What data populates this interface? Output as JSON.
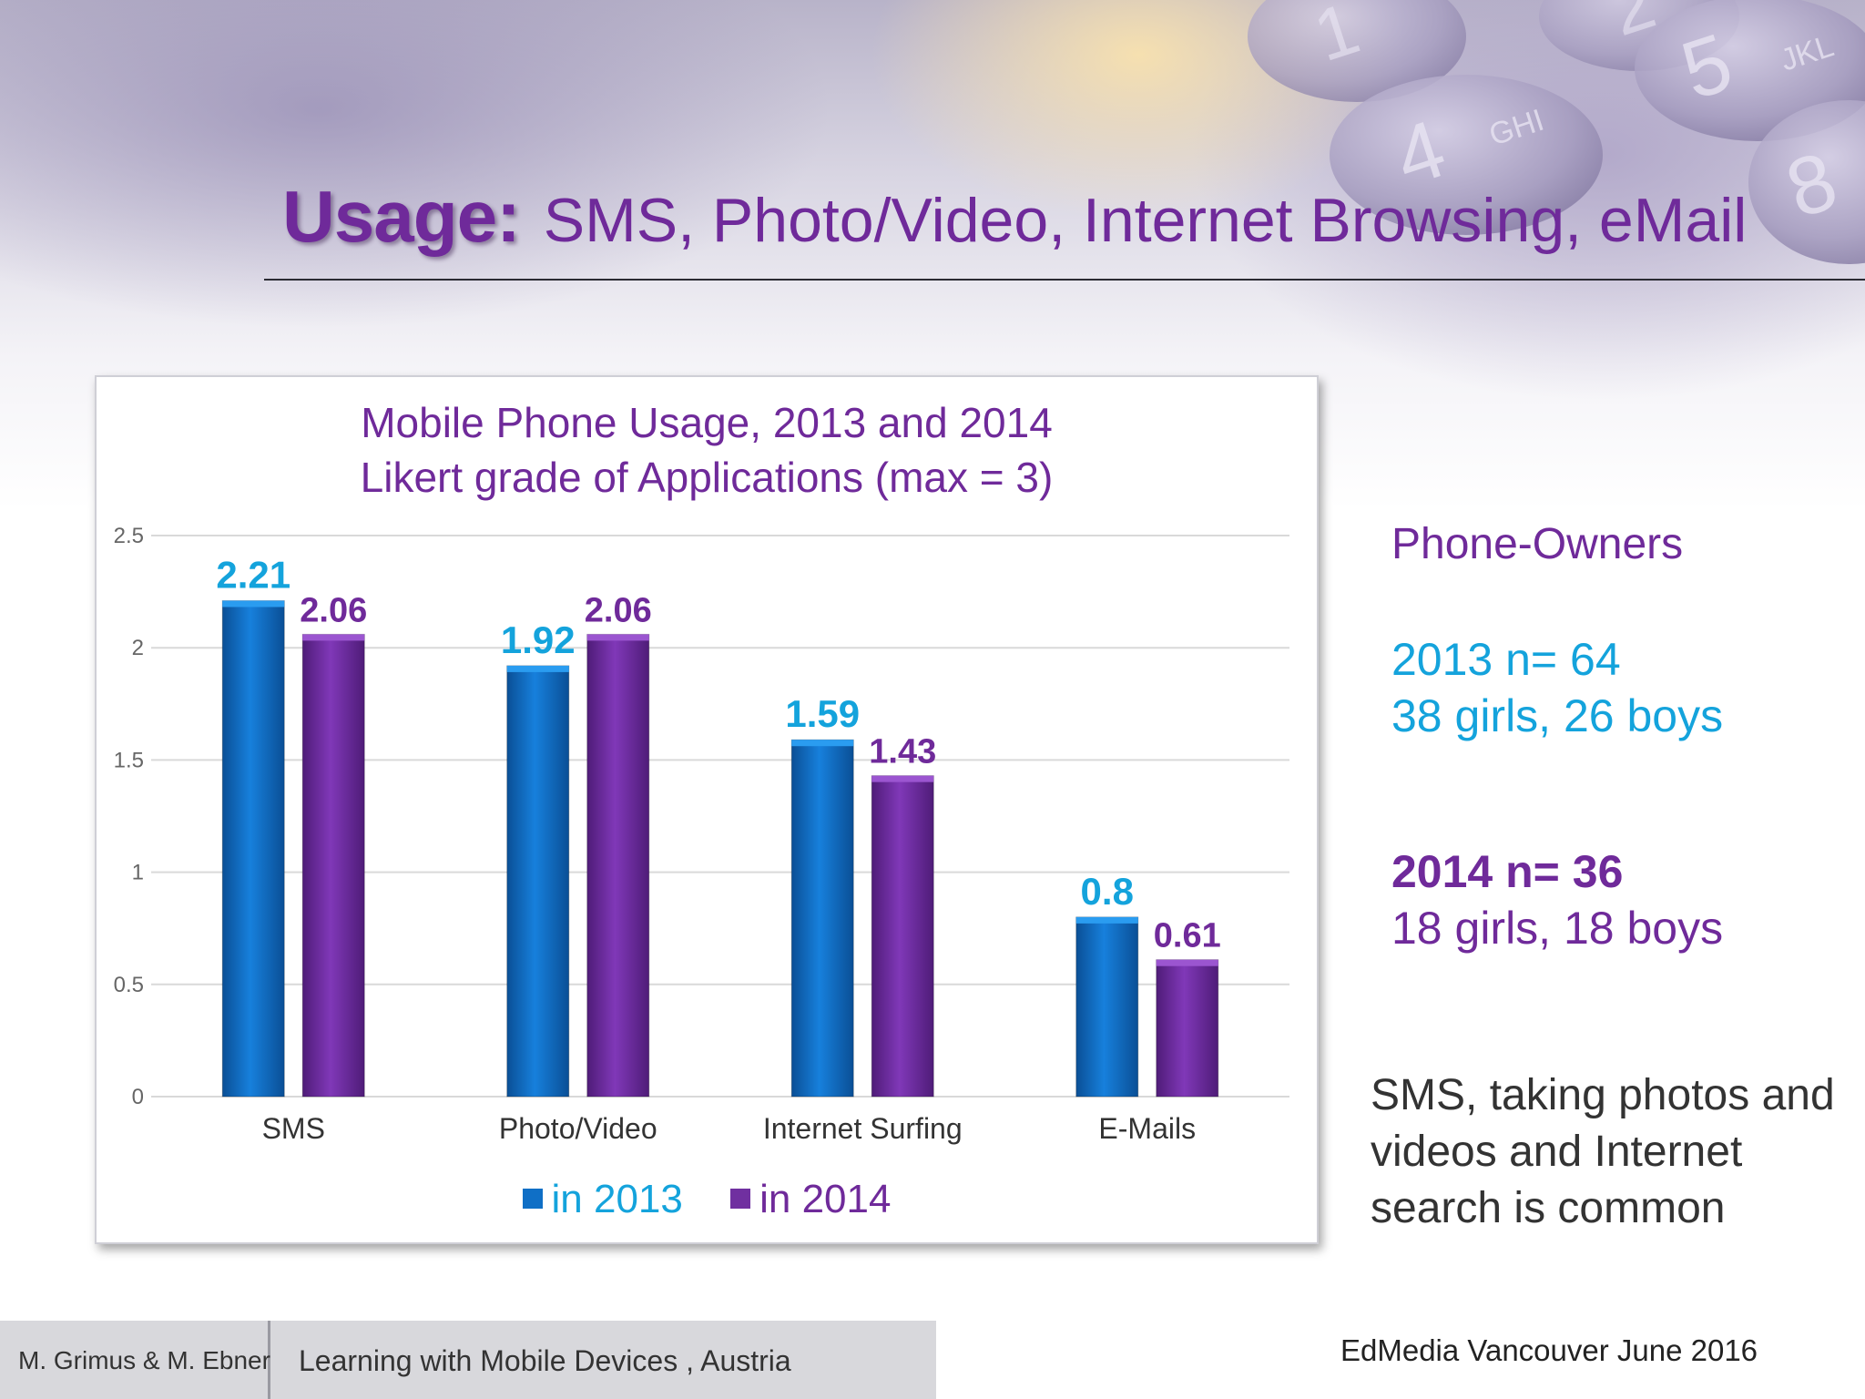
{
  "slide": {
    "title_lead": "Usage:",
    "title_rest": "SMS, Photo/Video, Internet Browsing, eMail",
    "background_keys": [
      "4",
      "GHI",
      "5",
      "JKL",
      "8",
      "1",
      "2"
    ]
  },
  "right_panel": {
    "owners_label": "Phone-Owners",
    "n_2013": "2013 n= 64",
    "girls_boys_2013": "38 girls, 26 boys",
    "n_2014": "2014 n= 36",
    "girls_boys_2014": "18 girls, 18 boys",
    "note": "SMS, taking photos and videos and Internet search is common"
  },
  "footer": {
    "authors": "M. Grimus & M. Ebner",
    "project": "Learning with Mobile Devices , Austria",
    "conference": "EdMedia  Vancouver June 2016"
  },
  "colors": {
    "title": "#6f2a9a",
    "series_2013": "#0f6fc6",
    "series_2013_label": "#14a3dc",
    "series_2014": "#7030a0",
    "series_2014_label": "#6f2a9a"
  },
  "chart_data": {
    "type": "bar",
    "title": "Mobile Phone Usage, 2013 and 2014",
    "subtitle": "Likert grade of Applications (max = 3)",
    "categories": [
      "SMS",
      "Photo/Video",
      "Internet Surfing",
      "E-Mails"
    ],
    "series": [
      {
        "name": "in 2013",
        "values": [
          2.21,
          1.92,
          1.59,
          0.8
        ],
        "labels": [
          "2.21",
          "1.92",
          "1.59",
          "0.8"
        ]
      },
      {
        "name": "in 2014",
        "values": [
          2.06,
          2.06,
          1.43,
          0.61
        ],
        "labels": [
          "2.06",
          "2.06",
          "1.43",
          "0.61"
        ]
      }
    ],
    "yticks": [
      "0",
      "0.5",
      "1",
      "1.5",
      "2",
      "2.5"
    ],
    "ylim": [
      0,
      2.5
    ],
    "grid": true,
    "legend": "bottom"
  }
}
